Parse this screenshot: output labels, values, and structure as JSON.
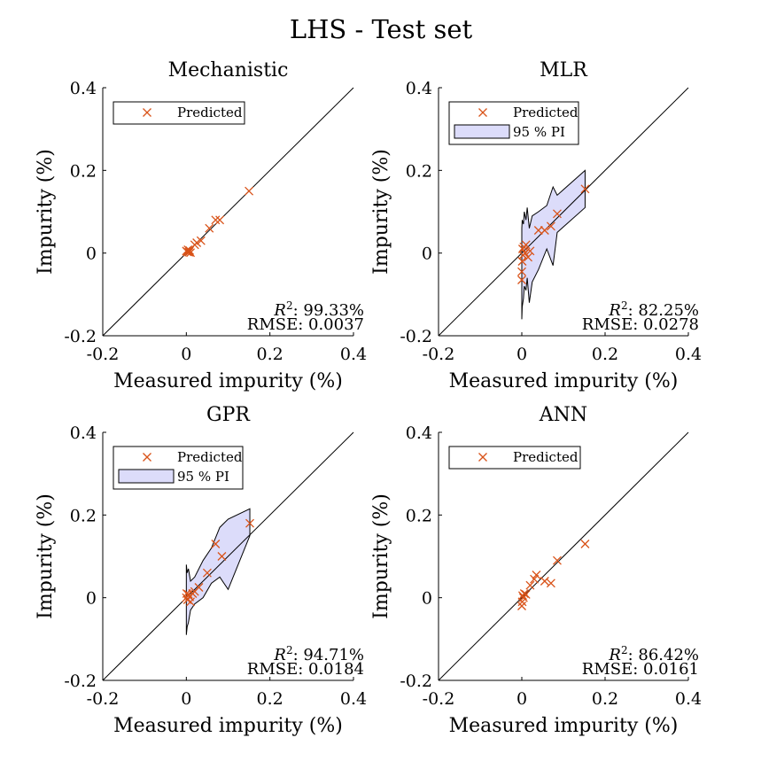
{
  "figure_title": "LHS - Test set",
  "colors": {
    "marker": "#D95319",
    "pi_fill": "#DCDCFA",
    "line": "#000000"
  },
  "chart_data": [
    {
      "type": "scatter",
      "title": "Mechanistic",
      "xlabel": "Measured impurity (%)",
      "ylabel": "Impurity (%)",
      "xlim": [
        -0.2,
        0.4
      ],
      "ylim": [
        -0.2,
        0.4
      ],
      "xticks": [
        "-0.2",
        "0",
        "0.2",
        "0.4"
      ],
      "yticks": [
        "-0.2",
        "0",
        "0.2",
        "0.4"
      ],
      "grid": false,
      "legend": {
        "position": "top-left",
        "entries": [
          "Predicted"
        ]
      },
      "stats": {
        "r2_label": "R",
        "r2_sup": "2",
        "r2_value": ": 99.33%",
        "rmse": "RMSE: 0.0037"
      },
      "series": [
        {
          "name": "Predicted",
          "x": [
            0.0,
            0.002,
            0.004,
            0.006,
            0.008,
            0.01,
            0.02,
            0.025,
            0.035,
            0.055,
            0.07,
            0.08,
            0.15
          ],
          "y": [
            0.005,
            0.003,
            0.008,
            0.002,
            0.006,
            0.001,
            0.02,
            0.025,
            0.03,
            0.06,
            0.08,
            0.08,
            0.15
          ]
        }
      ]
    },
    {
      "type": "scatter",
      "title": "MLR",
      "xlabel": "Measured impurity (%)",
      "ylabel": "Impurity (%)",
      "xlim": [
        -0.2,
        0.4
      ],
      "ylim": [
        -0.2,
        0.4
      ],
      "xticks": [
        "-0.2",
        "0",
        "0.2",
        "0.4"
      ],
      "yticks": [
        "-0.2",
        "0",
        "0.2",
        "0.4"
      ],
      "grid": false,
      "legend": {
        "position": "top-left",
        "entries": [
          "Predicted",
          "95 % PI"
        ]
      },
      "stats": {
        "r2_label": "R",
        "r2_sup": "2",
        "r2_value": ": 82.25%",
        "rmse": "RMSE: 0.0278"
      },
      "series": [
        {
          "name": "Predicted",
          "x": [
            0.0,
            0.0,
            0.001,
            0.002,
            0.003,
            0.005,
            0.008,
            0.01,
            0.015,
            0.02,
            0.04,
            0.055,
            0.07,
            0.085,
            0.152
          ],
          "y": [
            -0.065,
            -0.045,
            -0.02,
            0.01,
            -0.005,
            0.015,
            0.0,
            0.02,
            -0.01,
            0.005,
            0.055,
            0.055,
            0.065,
            0.095,
            0.155
          ]
        }
      ],
      "pi": {
        "x": [
          0.0,
          0.001,
          0.004,
          0.006,
          0.01,
          0.013,
          0.018,
          0.025,
          0.04,
          0.06,
          0.075,
          0.085,
          0.152
        ],
        "upper": [
          0.06,
          0.08,
          0.07,
          0.1,
          0.08,
          0.11,
          0.06,
          0.09,
          0.1,
          0.115,
          0.16,
          0.14,
          0.2
        ],
        "lower": [
          -0.16,
          -0.13,
          -0.11,
          -0.08,
          -0.09,
          -0.06,
          -0.12,
          -0.07,
          -0.04,
          0.01,
          -0.03,
          0.05,
          0.11
        ]
      }
    },
    {
      "type": "scatter",
      "title": "GPR",
      "xlabel": "Measured impurity (%)",
      "ylabel": "Impurity (%)",
      "xlim": [
        -0.2,
        0.4
      ],
      "ylim": [
        -0.2,
        0.4
      ],
      "xticks": [
        "-0.2",
        "0",
        "0.2",
        "0.4"
      ],
      "yticks": [
        "-0.2",
        "0",
        "0.2",
        "0.4"
      ],
      "grid": false,
      "legend": {
        "position": "top-left",
        "entries": [
          "Predicted",
          "95 % PI"
        ]
      },
      "stats": {
        "r2_label": "R",
        "r2_sup": "2",
        "r2_value": ": 94.71%",
        "rmse": "RMSE: 0.0184"
      },
      "series": [
        {
          "name": "Predicted",
          "x": [
            0.0,
            0.001,
            0.003,
            0.005,
            0.008,
            0.01,
            0.015,
            0.02,
            0.03,
            0.05,
            0.07,
            0.085,
            0.152
          ],
          "y": [
            0.0,
            0.01,
            -0.005,
            0.008,
            0.002,
            -0.01,
            0.01,
            0.015,
            0.025,
            0.06,
            0.13,
            0.1,
            0.18
          ]
        }
      ],
      "pi": {
        "x": [
          0.0,
          0.002,
          0.005,
          0.01,
          0.02,
          0.04,
          0.06,
          0.08,
          0.1,
          0.152
        ],
        "upper": [
          0.08,
          0.06,
          0.07,
          0.04,
          0.05,
          0.09,
          0.12,
          0.17,
          0.19,
          0.215
        ],
        "lower": [
          -0.09,
          -0.07,
          -0.06,
          -0.03,
          -0.015,
          0.0,
          0.035,
          0.05,
          0.02,
          0.15
        ]
      }
    },
    {
      "type": "scatter",
      "title": "ANN",
      "xlabel": "Measured impurity (%)",
      "ylabel": "Impurity (%)",
      "xlim": [
        -0.2,
        0.4
      ],
      "ylim": [
        -0.2,
        0.4
      ],
      "xticks": [
        "-0.2",
        "0",
        "0.2",
        "0.4"
      ],
      "yticks": [
        "-0.2",
        "0",
        "0.2",
        "0.4"
      ],
      "grid": false,
      "legend": {
        "position": "top-left",
        "entries": [
          "Predicted"
        ]
      },
      "stats": {
        "r2_label": "R",
        "r2_sup": "2",
        "r2_value": ": 86.42%",
        "rmse": "RMSE: 0.0161"
      },
      "series": [
        {
          "name": "Predicted",
          "x": [
            0.0,
            0.001,
            0.002,
            0.004,
            0.006,
            0.01,
            0.02,
            0.03,
            0.035,
            0.055,
            0.07,
            0.085,
            0.152
          ],
          "y": [
            -0.02,
            -0.01,
            0.005,
            0.0,
            0.01,
            0.008,
            0.03,
            0.045,
            0.055,
            0.04,
            0.035,
            0.09,
            0.13
          ]
        }
      ]
    }
  ]
}
